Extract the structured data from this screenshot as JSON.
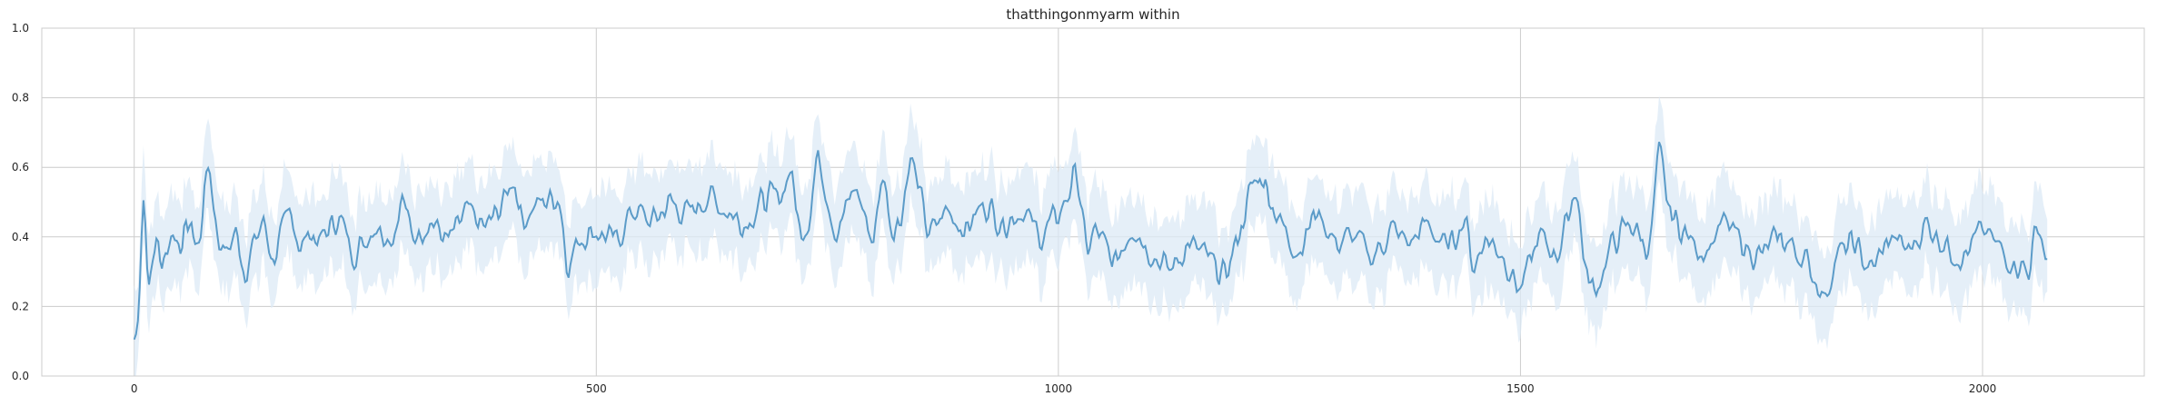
{
  "chart_data": {
    "type": "line",
    "title": "thatthingonmyarm within",
    "xlabel": "",
    "ylabel": "",
    "xlim": [
      -100,
      2175
    ],
    "ylim": [
      0.0,
      1.0
    ],
    "x_ticks": [
      0,
      500,
      1000,
      1500,
      2000
    ],
    "x_tick_labels": [
      "0",
      "500",
      "1000",
      "1500",
      "2000"
    ],
    "y_ticks": [
      0.0,
      0.2,
      0.4,
      0.6,
      0.8,
      1.0
    ],
    "y_tick_labels": [
      "0.0",
      "0.2",
      "0.4",
      "0.6",
      "0.8",
      "1.0"
    ],
    "grid": true,
    "legend": "none",
    "colors": {
      "line": "#5b9bc8",
      "band": "#dce9f5",
      "grid": "#cccccc",
      "text": "#262626"
    },
    "series": [
      {
        "x": [
          0,
          5,
          10,
          15,
          20,
          25,
          30,
          40,
          50,
          60,
          70,
          80,
          90,
          100,
          110,
          120,
          130,
          140,
          150,
          160,
          170,
          180,
          190,
          200,
          220,
          240,
          260,
          280,
          290,
          300,
          320,
          340,
          360,
          380,
          400,
          410,
          420,
          440,
          460,
          470,
          480,
          500,
          520,
          540,
          560,
          580,
          600,
          620,
          640,
          660,
          680,
          700,
          710,
          720,
          730,
          740,
          760,
          780,
          800,
          810,
          820,
          830,
          840,
          860,
          880,
          900,
          920,
          940,
          960,
          980,
          1000,
          1010,
          1020,
          1030,
          1040,
          1060,
          1080,
          1100,
          1120,
          1140,
          1160,
          1180,
          1200,
          1210,
          1220,
          1240,
          1260,
          1280,
          1300,
          1320,
          1340,
          1360,
          1380,
          1400,
          1420,
          1440,
          1450,
          1460,
          1480,
          1500,
          1520,
          1540,
          1550,
          1560,
          1570,
          1580,
          1600,
          1620,
          1640,
          1650,
          1660,
          1680,
          1700,
          1720,
          1740,
          1760,
          1780,
          1800,
          1820,
          1830,
          1840,
          1860,
          1880,
          1900,
          1920,
          1940,
          1960,
          1980,
          2000,
          2020,
          2040,
          2050,
          2060,
          2070
        ],
        "values": [
          0.1,
          0.15,
          0.58,
          0.25,
          0.35,
          0.4,
          0.3,
          0.42,
          0.38,
          0.44,
          0.36,
          0.64,
          0.4,
          0.35,
          0.42,
          0.3,
          0.38,
          0.45,
          0.33,
          0.4,
          0.48,
          0.36,
          0.42,
          0.38,
          0.46,
          0.35,
          0.44,
          0.4,
          0.52,
          0.4,
          0.45,
          0.38,
          0.47,
          0.42,
          0.5,
          0.58,
          0.45,
          0.5,
          0.52,
          0.3,
          0.4,
          0.42,
          0.38,
          0.48,
          0.44,
          0.5,
          0.46,
          0.52,
          0.48,
          0.44,
          0.5,
          0.52,
          0.6,
          0.42,
          0.45,
          0.65,
          0.4,
          0.55,
          0.38,
          0.6,
          0.42,
          0.46,
          0.64,
          0.4,
          0.48,
          0.42,
          0.5,
          0.44,
          0.48,
          0.4,
          0.46,
          0.52,
          0.6,
          0.35,
          0.42,
          0.32,
          0.44,
          0.36,
          0.3,
          0.38,
          0.34,
          0.28,
          0.45,
          0.55,
          0.58,
          0.44,
          0.36,
          0.48,
          0.38,
          0.4,
          0.34,
          0.42,
          0.38,
          0.44,
          0.36,
          0.46,
          0.3,
          0.4,
          0.36,
          0.24,
          0.4,
          0.35,
          0.44,
          0.56,
          0.3,
          0.24,
          0.38,
          0.44,
          0.36,
          0.65,
          0.48,
          0.4,
          0.36,
          0.44,
          0.38,
          0.34,
          0.4,
          0.36,
          0.28,
          0.22,
          0.34,
          0.38,
          0.3,
          0.4,
          0.36,
          0.44,
          0.38,
          0.34,
          0.42,
          0.36,
          0.32,
          0.3,
          0.45,
          0.32
        ]
      }
    ]
  }
}
